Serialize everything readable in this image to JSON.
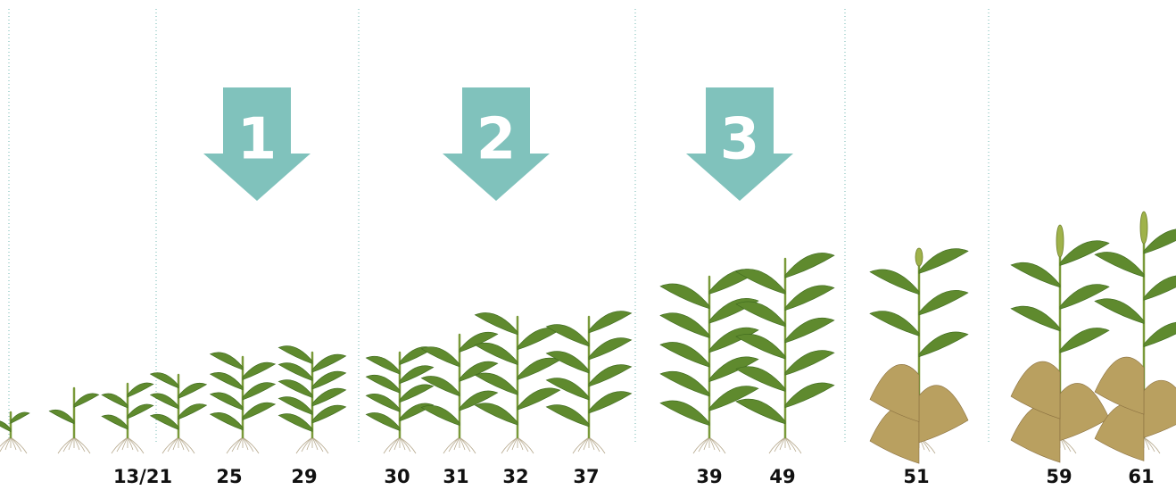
{
  "arrows": [
    {
      "label": "1"
    },
    {
      "label": "2"
    },
    {
      "label": "3"
    }
  ],
  "stages": [
    "13/21",
    "25",
    "29",
    "30",
    "31",
    "32",
    "37",
    "39",
    "49",
    "51",
    "59",
    "61"
  ]
}
